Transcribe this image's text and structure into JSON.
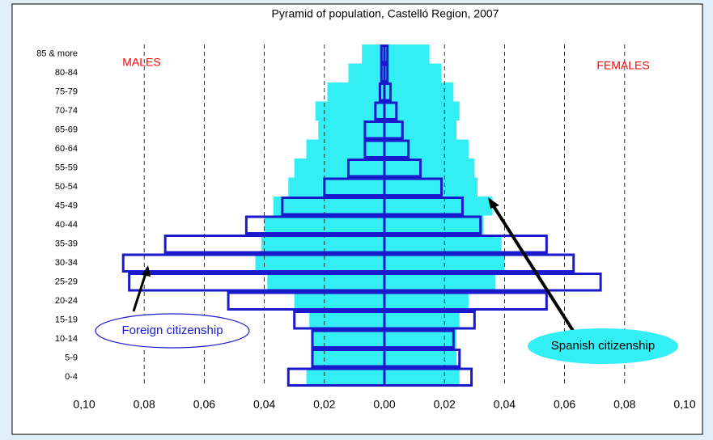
{
  "chart_data": {
    "type": "pyramid",
    "title": "Pyramid of population, Castelló Region, 2007",
    "categories": [
      "0-4",
      "5-9",
      "10-14",
      "15-19",
      "20-24",
      "25-29",
      "30-34",
      "35-39",
      "40-44",
      "45-49",
      "50-54",
      "55-59",
      "60-64",
      "65-69",
      "70-74",
      "75-79",
      "80-84",
      "85 & more"
    ],
    "series": [
      {
        "name": "Spanish citizenship",
        "color": "#33eef2",
        "filled": true,
        "males": [
          -0.026,
          -0.024,
          -0.024,
          -0.025,
          -0.03,
          -0.039,
          -0.043,
          -0.041,
          -0.04,
          -0.037,
          -0.032,
          -0.03,
          -0.026,
          -0.022,
          -0.023,
          -0.019,
          -0.012,
          -0.0075
        ],
        "females": [
          0.025,
          0.024,
          0.024,
          0.025,
          0.028,
          0.037,
          0.04,
          0.039,
          0.033,
          0.036,
          0.031,
          0.03,
          0.028,
          0.024,
          0.025,
          0.023,
          0.019,
          0.015
        ]
      },
      {
        "name": "Foreign citizenship",
        "color": "#1a1acc",
        "filled": false,
        "males": [
          -0.032,
          -0.024,
          -0.024,
          -0.03,
          -0.052,
          -0.085,
          -0.087,
          -0.073,
          -0.046,
          -0.034,
          -0.02,
          -0.012,
          -0.0065,
          -0.0065,
          -0.003,
          -0.0015,
          -0.001,
          -0.001
        ],
        "females": [
          0.029,
          0.025,
          0.023,
          0.03,
          0.054,
          0.072,
          0.063,
          0.054,
          0.032,
          0.026,
          0.019,
          0.012,
          0.008,
          0.006,
          0.004,
          0.002,
          0.001,
          0.001
        ]
      }
    ],
    "annotations": [
      "MALES",
      "FEMALES"
    ],
    "annotation_color": "#ff0000",
    "xlim": [
      -0.1,
      0.1
    ],
    "xticks": [
      {
        "value": -0.1,
        "label": "0,10"
      },
      {
        "value": -0.08,
        "label": "0,08"
      },
      {
        "value": -0.06,
        "label": "0,06"
      },
      {
        "value": -0.04,
        "label": "0,04"
      },
      {
        "value": -0.02,
        "label": "0,02"
      },
      {
        "value": 0,
        "label": "0,00"
      },
      {
        "value": 0.02,
        "label": "0,02"
      },
      {
        "value": 0.04,
        "label": "0,04"
      },
      {
        "value": 0.06,
        "label": "0,06"
      },
      {
        "value": 0.08,
        "label": "0,08"
      },
      {
        "value": 0.1,
        "label": "0,10"
      }
    ],
    "grid": true
  }
}
